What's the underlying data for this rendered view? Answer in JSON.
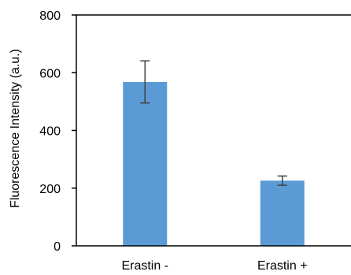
{
  "chart_data": {
    "type": "bar",
    "categories": [
      "Erastin -",
      "Erastin +"
    ],
    "values": [
      568,
      226
    ],
    "error": [
      73,
      16
    ],
    "title": "",
    "xlabel": "",
    "ylabel": "Fluorescence Intensity (a.u.)",
    "ylim": [
      0,
      800
    ],
    "yticks": [
      0,
      200,
      400,
      600,
      800
    ],
    "grid": false,
    "colors": {
      "bar": "#5b9bd5",
      "error_bar": "#404040",
      "axis": "#000000"
    }
  }
}
